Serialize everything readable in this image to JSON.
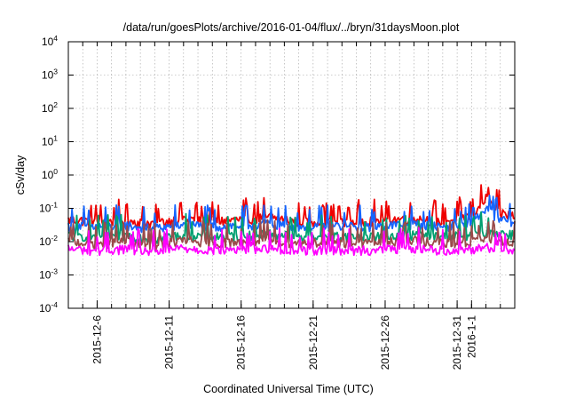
{
  "chart_data": {
    "type": "line",
    "title": "/data/run/goesPlots/archive/2016-01-04/flux/../bryn/31daysMoon.plot",
    "xlabel": "Coordinated Universal Time (UTC)",
    "ylabel": "cSv/day",
    "yscale": "log",
    "ylim": [
      0.0001,
      10000
    ],
    "xlim": [
      "2015-12-04",
      "2016-01-04"
    ],
    "grid": true,
    "y_ticks": [
      {
        "base": "10",
        "exp": "-4"
      },
      {
        "base": "10",
        "exp": "-3"
      },
      {
        "base": "10",
        "exp": "-2"
      },
      {
        "base": "10",
        "exp": "-1"
      },
      {
        "base": "10",
        "exp": "0"
      },
      {
        "base": "10",
        "exp": "1"
      },
      {
        "base": "10",
        "exp": "2"
      },
      {
        "base": "10",
        "exp": "3"
      },
      {
        "base": "10",
        "exp": "4"
      }
    ],
    "x_ticks": [
      {
        "label": "2015-12-6",
        "date": "2015-12-06"
      },
      {
        "label": "2015-12-11",
        "date": "2015-12-11"
      },
      {
        "label": "2015-12-16",
        "date": "2015-12-16"
      },
      {
        "label": "2015-12-21",
        "date": "2015-12-21"
      },
      {
        "label": "2015-12-26",
        "date": "2015-12-26"
      },
      {
        "label": "2015-12-31",
        "date": "2015-12-31"
      },
      {
        "label": "2016-1-1",
        "date": "2016-01-01"
      }
    ],
    "series": [
      {
        "color": "#ee0000",
        "values": [
          {
            "x": "2015-12-04",
            "y": 0.045
          },
          {
            "x": "2015-12-06",
            "y": 0.04
          },
          {
            "x": "2015-12-08",
            "y": 0.042
          },
          {
            "x": "2015-12-10",
            "y": 0.035
          },
          {
            "x": "2015-12-12",
            "y": 0.05
          },
          {
            "x": "2015-12-14",
            "y": 0.04
          },
          {
            "x": "2015-12-16",
            "y": 0.045
          },
          {
            "x": "2015-12-18",
            "y": 0.055
          },
          {
            "x": "2015-12-20",
            "y": 0.04
          },
          {
            "x": "2015-12-22",
            "y": 0.042
          },
          {
            "x": "2015-12-24",
            "y": 0.04
          },
          {
            "x": "2015-12-26",
            "y": 0.045
          },
          {
            "x": "2015-12-28",
            "y": 0.05
          },
          {
            "x": "2015-12-30",
            "y": 0.04
          },
          {
            "x": "2016-01-01",
            "y": 0.06
          },
          {
            "x": "2016-01-02",
            "y": 0.2
          },
          {
            "x": "2016-01-03",
            "y": 0.07
          },
          {
            "x": "2016-01-04",
            "y": 0.06
          }
        ]
      },
      {
        "color": "#1565ff",
        "values": [
          {
            "x": "2015-12-04",
            "y": 0.03
          },
          {
            "x": "2015-12-06",
            "y": 0.028
          },
          {
            "x": "2015-12-08",
            "y": 0.03
          },
          {
            "x": "2015-12-10",
            "y": 0.025
          },
          {
            "x": "2015-12-12",
            "y": 0.032
          },
          {
            "x": "2015-12-14",
            "y": 0.028
          },
          {
            "x": "2015-12-16",
            "y": 0.03
          },
          {
            "x": "2015-12-18",
            "y": 0.035
          },
          {
            "x": "2015-12-20",
            "y": 0.028
          },
          {
            "x": "2015-12-22",
            "y": 0.03
          },
          {
            "x": "2015-12-24",
            "y": 0.028
          },
          {
            "x": "2015-12-26",
            "y": 0.03
          },
          {
            "x": "2015-12-28",
            "y": 0.032
          },
          {
            "x": "2015-12-30",
            "y": 0.028
          },
          {
            "x": "2016-01-01",
            "y": 0.035
          },
          {
            "x": "2016-01-02",
            "y": 0.1
          },
          {
            "x": "2016-01-03",
            "y": 0.045
          },
          {
            "x": "2016-01-04",
            "y": 0.04
          }
        ]
      },
      {
        "color": "#00a070",
        "values": [
          {
            "x": "2015-12-04",
            "y": 0.015
          },
          {
            "x": "2015-12-06",
            "y": 0.014
          },
          {
            "x": "2015-12-08",
            "y": 0.015
          },
          {
            "x": "2015-12-10",
            "y": 0.012
          },
          {
            "x": "2015-12-12",
            "y": 0.016
          },
          {
            "x": "2015-12-14",
            "y": 0.014
          },
          {
            "x": "2015-12-16",
            "y": 0.015
          },
          {
            "x": "2015-12-18",
            "y": 0.017
          },
          {
            "x": "2015-12-20",
            "y": 0.014
          },
          {
            "x": "2015-12-22",
            "y": 0.015
          },
          {
            "x": "2015-12-24",
            "y": 0.014
          },
          {
            "x": "2015-12-26",
            "y": 0.015
          },
          {
            "x": "2015-12-28",
            "y": 0.016
          },
          {
            "x": "2015-12-30",
            "y": 0.014
          },
          {
            "x": "2016-01-01",
            "y": 0.016
          },
          {
            "x": "2016-01-02",
            "y": 0.02
          },
          {
            "x": "2016-01-03",
            "y": 0.018
          },
          {
            "x": "2016-01-04",
            "y": 0.016
          }
        ]
      },
      {
        "color": "#9a4a4a",
        "values": [
          {
            "x": "2015-12-04",
            "y": 0.01
          },
          {
            "x": "2015-12-06",
            "y": 0.009
          },
          {
            "x": "2015-12-08",
            "y": 0.01
          },
          {
            "x": "2015-12-10",
            "y": 0.008
          },
          {
            "x": "2015-12-12",
            "y": 0.011
          },
          {
            "x": "2015-12-14",
            "y": 0.009
          },
          {
            "x": "2015-12-16",
            "y": 0.01
          },
          {
            "x": "2015-12-18",
            "y": 0.011
          },
          {
            "x": "2015-12-20",
            "y": 0.009
          },
          {
            "x": "2015-12-22",
            "y": 0.01
          },
          {
            "x": "2015-12-24",
            "y": 0.009
          },
          {
            "x": "2015-12-26",
            "y": 0.01
          },
          {
            "x": "2015-12-28",
            "y": 0.011
          },
          {
            "x": "2015-12-30",
            "y": 0.009
          },
          {
            "x": "2016-01-01",
            "y": 0.01
          },
          {
            "x": "2016-01-02",
            "y": 0.012
          },
          {
            "x": "2016-01-03",
            "y": 0.011
          },
          {
            "x": "2016-01-04",
            "y": 0.01
          }
        ]
      },
      {
        "color": "#ff00ff",
        "values": [
          {
            "x": "2015-12-04",
            "y": 0.006
          },
          {
            "x": "2015-12-06",
            "y": 0.0055
          },
          {
            "x": "2015-12-08",
            "y": 0.006
          },
          {
            "x": "2015-12-10",
            "y": 0.005
          },
          {
            "x": "2015-12-12",
            "y": 0.0065
          },
          {
            "x": "2015-12-14",
            "y": 0.0055
          },
          {
            "x": "2015-12-16",
            "y": 0.006
          },
          {
            "x": "2015-12-18",
            "y": 0.0065
          },
          {
            "x": "2015-12-20",
            "y": 0.0055
          },
          {
            "x": "2015-12-22",
            "y": 0.006
          },
          {
            "x": "2015-12-24",
            "y": 0.0055
          },
          {
            "x": "2015-12-26",
            "y": 0.006
          },
          {
            "x": "2015-12-28",
            "y": 0.0065
          },
          {
            "x": "2015-12-30",
            "y": 0.0055
          },
          {
            "x": "2016-01-01",
            "y": 0.006
          },
          {
            "x": "2016-01-02",
            "y": 0.007
          },
          {
            "x": "2016-01-03",
            "y": 0.0065
          },
          {
            "x": "2016-01-04",
            "y": 0.006
          }
        ]
      }
    ]
  }
}
